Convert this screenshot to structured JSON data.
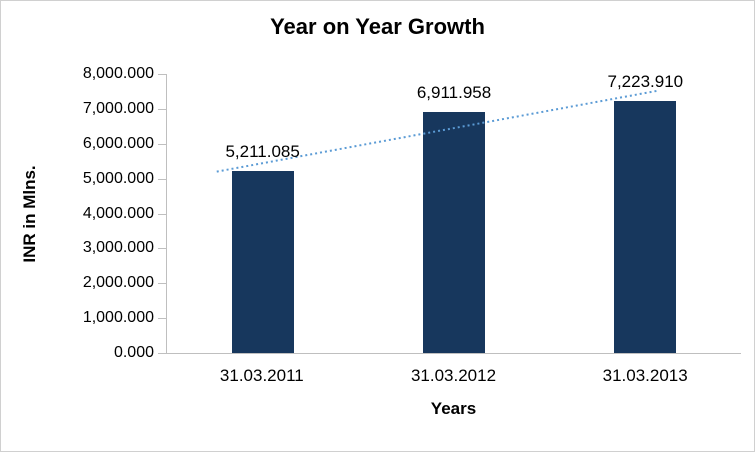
{
  "chart_data": {
    "type": "bar",
    "title": "Year on Year Growth",
    "xlabel": "Years",
    "ylabel": "INR in Mlns.",
    "categories": [
      "31.03.2011",
      "31.03.2012",
      "31.03.2013"
    ],
    "values": [
      5211.085,
      6911.958,
      7223.91
    ],
    "data_labels": [
      "5,211.085",
      "6,911.958",
      "7,223.910"
    ],
    "ylim": [
      0,
      8000
    ],
    "ytick_step": 1000,
    "ytick_labels": [
      "0.000",
      "1,000.000",
      "2,000.000",
      "3,000.000",
      "4,000.000",
      "5,000.000",
      "6,000.000",
      "7,000.000",
      "8,000.000"
    ],
    "grid": false,
    "legend": "none",
    "bar_color": "#17375D",
    "axis_color": "#bfbfbf",
    "text_color": "#000000",
    "trendline": {
      "type": "linear",
      "color": "#5B9BD5",
      "style": "dotted"
    }
  }
}
